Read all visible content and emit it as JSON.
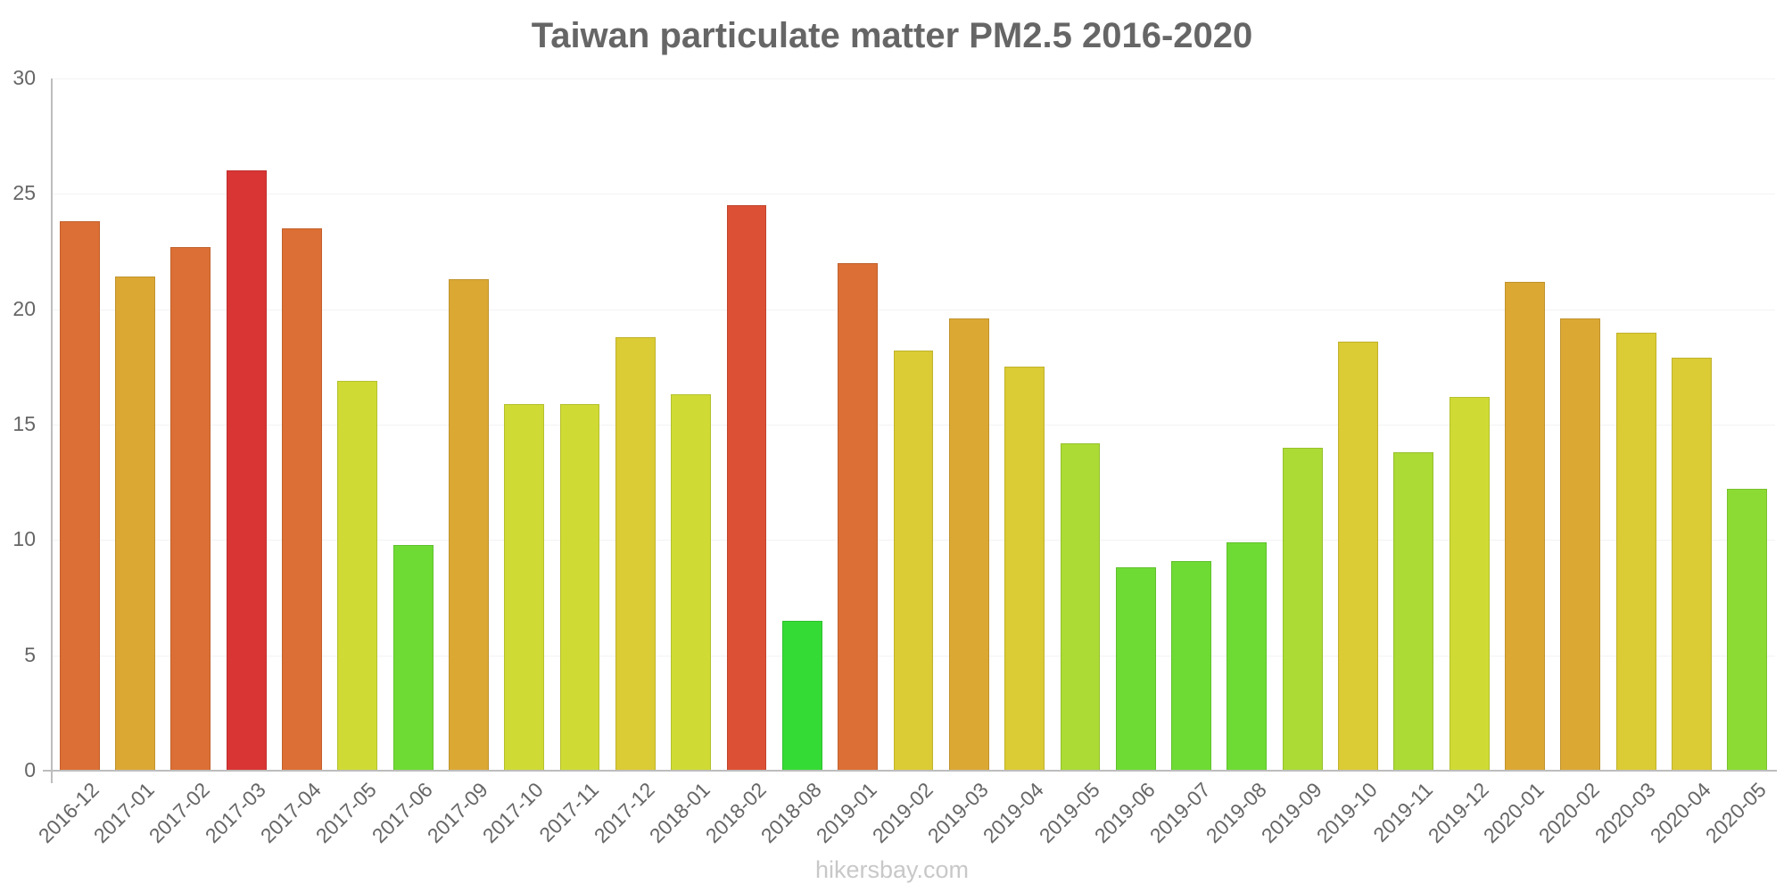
{
  "chart_data": {
    "type": "bar",
    "title": "Taiwan particulate matter PM2.5 2016-2020",
    "xlabel": "",
    "ylabel": "",
    "ylim": [
      0,
      30
    ],
    "yticks": [
      0,
      5,
      10,
      15,
      20,
      25,
      30
    ],
    "grid": true,
    "legend": null,
    "categories": [
      "2016-12",
      "2017-01",
      "2017-02",
      "2017-03",
      "2017-04",
      "2017-05",
      "2017-06",
      "2017-09",
      "2017-10",
      "2017-11",
      "2017-12",
      "2018-01",
      "2018-02",
      "2018-08",
      "2019-01",
      "2019-02",
      "2019-03",
      "2019-04",
      "2019-05",
      "2019-06",
      "2019-07",
      "2019-08",
      "2019-09",
      "2019-10",
      "2019-11",
      "2019-12",
      "2020-01",
      "2020-02",
      "2020-03",
      "2020-04",
      "2020-05"
    ],
    "values": [
      23.8,
      21.4,
      22.7,
      26.0,
      23.5,
      16.9,
      9.8,
      21.3,
      15.9,
      15.9,
      18.8,
      16.3,
      24.5,
      6.5,
      22.0,
      18.2,
      19.6,
      17.5,
      14.2,
      8.8,
      9.1,
      9.9,
      14.0,
      18.6,
      13.8,
      16.2,
      21.2,
      19.6,
      19.0,
      17.9,
      12.2
    ],
    "colors": [
      "#DC6F35",
      "#DBA834",
      "#DC6F35",
      "#D93535",
      "#DC6F35",
      "#CFDB34",
      "#6EDB34",
      "#DBA834",
      "#CFDB34",
      "#CFDB34",
      "#DBCB34",
      "#CFDB34",
      "#DC5035",
      "#35DB35",
      "#DC6F35",
      "#DBCB34",
      "#DBA834",
      "#DBCB34",
      "#ABDB34",
      "#6EDB34",
      "#6EDB34",
      "#6EDB34",
      "#ABDB34",
      "#DBCB34",
      "#ABDB34",
      "#CFDB34",
      "#DBA834",
      "#DBA834",
      "#DBCB34",
      "#DBCB34",
      "#8BDB34"
    ]
  },
  "footer": {
    "watermark": "hikersbay.com"
  }
}
